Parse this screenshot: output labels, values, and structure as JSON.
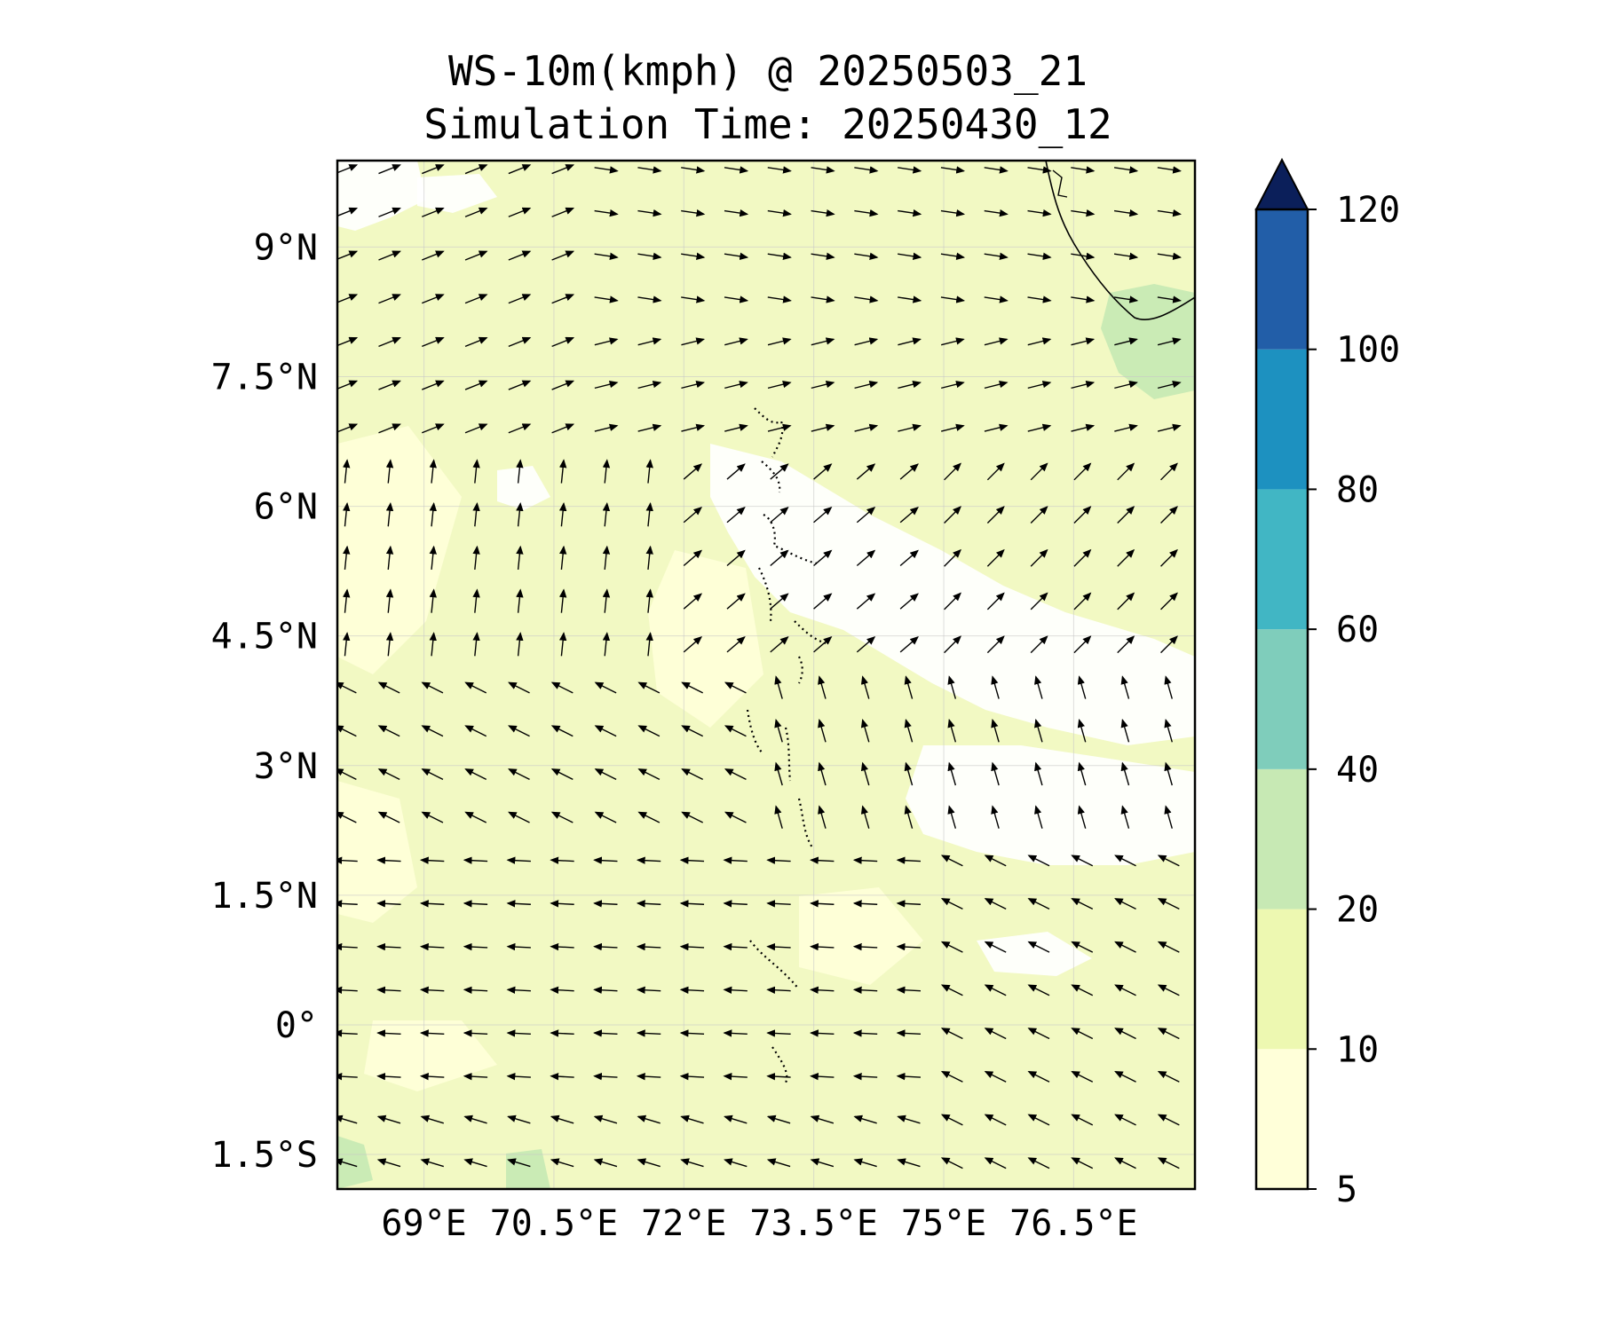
{
  "title": "WS-10m(kmph) @ 20250503_21",
  "subtitle": "Simulation Time: 20250430_12",
  "map": {
    "lon_range": [
      68.0,
      77.9
    ],
    "lat_range": [
      -1.9,
      10.0
    ],
    "lat_ticks": [
      {
        "value": 9.0,
        "label": "9°N"
      },
      {
        "value": 7.5,
        "label": "7.5°N"
      },
      {
        "value": 6.0,
        "label": "6°N"
      },
      {
        "value": 4.5,
        "label": "4.5°N"
      },
      {
        "value": 3.0,
        "label": "3°N"
      },
      {
        "value": 1.5,
        "label": "1.5°N"
      },
      {
        "value": 0.0,
        "label": "0°"
      },
      {
        "value": -1.5,
        "label": "1.5°S"
      }
    ],
    "lon_ticks": [
      {
        "value": 69.0,
        "label": "69°E"
      },
      {
        "value": 70.5,
        "label": "70.5°E"
      },
      {
        "value": 72.0,
        "label": "72°E"
      },
      {
        "value": 73.5,
        "label": "73.5°E"
      },
      {
        "value": 75.0,
        "label": "75°E"
      },
      {
        "value": 76.5,
        "label": "76.5°E"
      }
    ],
    "colorbar": {
      "levels": [
        5,
        10,
        20,
        40,
        60,
        80,
        100,
        120
      ],
      "tick_labels": [
        "5",
        "10",
        "20",
        "40",
        "60",
        "80",
        "100",
        "120"
      ],
      "colors": [
        "#ffffd9",
        "#edf8b1",
        "#c7e9b4",
        "#7fcdbb",
        "#41b6c4",
        "#1d91c0",
        "#225ea8",
        "#081d58"
      ],
      "extend_color": "#0b1f5a"
    },
    "background_color": "#f2f9c3",
    "calm_color": "#ffffff"
  }
}
